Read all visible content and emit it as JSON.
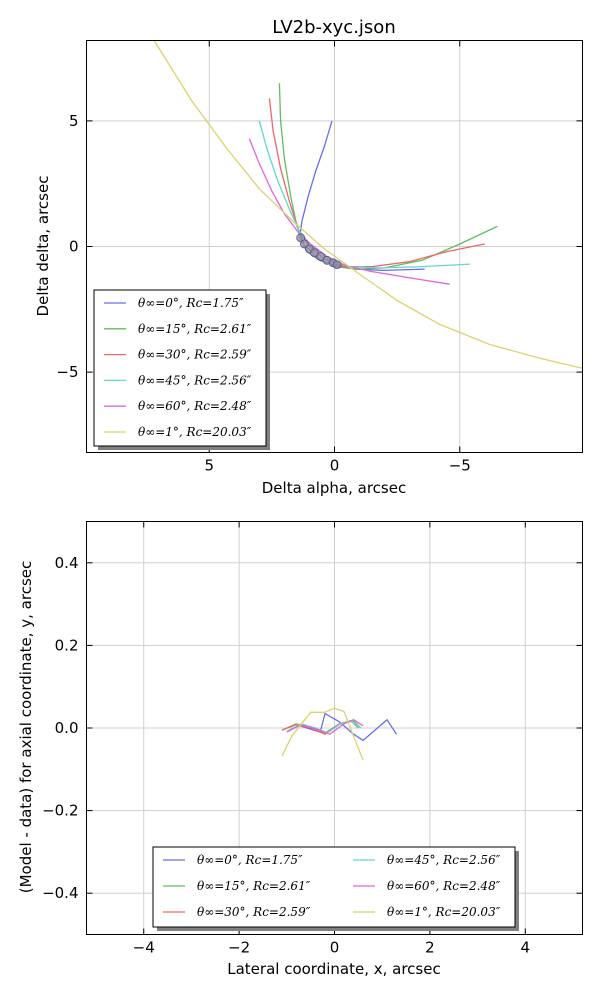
{
  "colors": {
    "series": [
      "#6b6bf2",
      "#5fbf5f",
      "#f06666",
      "#5ed9cc",
      "#e065e0",
      "#dcd26b"
    ],
    "marker": "#8888aa"
  },
  "chart_data": [
    {
      "type": "line",
      "title": "LV2b-xyc.json",
      "xlabel": "Delta alpha, arcsec",
      "ylabel": "Delta delta, arcsec",
      "xlim": [
        9.9,
        -9.9
      ],
      "ylim": [
        -8.2,
        8.2
      ],
      "xticks": [
        5,
        0,
        -5
      ],
      "yticks": [
        -5,
        0,
        5
      ],
      "grid": true,
      "legend_position": "lower-left",
      "series": [
        {
          "name": "θ∞=0°, Rc=1.75″",
          "points": [
            [
              0.1,
              5.0
            ],
            [
              0.4,
              4.0
            ],
            [
              0.75,
              3.0
            ],
            [
              1.05,
              2.0
            ],
            [
              1.3,
              1.0
            ],
            [
              1.38,
              0.4
            ],
            [
              1.1,
              -0.2
            ],
            [
              0.6,
              -0.55
            ],
            [
              0,
              -0.75
            ],
            [
              -0.8,
              -0.9
            ],
            [
              -2.0,
              -0.95
            ],
            [
              -3.6,
              -0.9
            ]
          ]
        },
        {
          "name": "θ∞=15°, Rc=2.61″",
          "points": [
            [
              2.2,
              6.5
            ],
            [
              2.15,
              5.0
            ],
            [
              2.0,
              3.5
            ],
            [
              1.75,
              2.0
            ],
            [
              1.5,
              0.8
            ],
            [
              1.2,
              0.05
            ],
            [
              0.6,
              -0.5
            ],
            [
              0,
              -0.8
            ],
            [
              -0.9,
              -0.9
            ],
            [
              -2.0,
              -0.85
            ],
            [
              -3.5,
              -0.55
            ],
            [
              -5.0,
              0.1
            ],
            [
              -6.5,
              0.8
            ]
          ]
        },
        {
          "name": "θ∞=30°, Rc=2.59″",
          "points": [
            [
              2.6,
              5.9
            ],
            [
              2.45,
              4.6
            ],
            [
              2.15,
              3.1
            ],
            [
              1.8,
              1.8
            ],
            [
              1.45,
              0.7
            ],
            [
              1.0,
              0
            ],
            [
              0.4,
              -0.5
            ],
            [
              -0.4,
              -0.8
            ],
            [
              -1.5,
              -0.8
            ],
            [
              -3.0,
              -0.6
            ],
            [
              -4.5,
              -0.2
            ],
            [
              -6.0,
              0.1
            ]
          ]
        },
        {
          "name": "θ∞=45°, Rc=2.56″",
          "points": [
            [
              3.0,
              5.0
            ],
            [
              2.7,
              3.9
            ],
            [
              2.3,
              2.7
            ],
            [
              1.85,
              1.6
            ],
            [
              1.4,
              0.6
            ],
            [
              0.9,
              0
            ],
            [
              0.2,
              -0.5
            ],
            [
              -0.6,
              -0.8
            ],
            [
              -1.8,
              -0.85
            ],
            [
              -3.5,
              -0.8
            ],
            [
              -5.4,
              -0.7
            ]
          ]
        },
        {
          "name": "θ∞=60°, Rc=2.48″",
          "points": [
            [
              3.4,
              4.3
            ],
            [
              3.0,
              3.3
            ],
            [
              2.5,
              2.2
            ],
            [
              2.0,
              1.3
            ],
            [
              1.4,
              0.5
            ],
            [
              0.9,
              0.05
            ],
            [
              0.3,
              -0.4
            ],
            [
              -0.4,
              -0.75
            ],
            [
              -1.5,
              -1.0
            ],
            [
              -3.0,
              -1.25
            ],
            [
              -4.6,
              -1.5
            ]
          ]
        },
        {
          "name": "θ∞=1°, Rc=20.03″",
          "points": [
            [
              7.2,
              8.2
            ],
            [
              5.7,
              5.8
            ],
            [
              4.3,
              3.9
            ],
            [
              3.0,
              2.3
            ],
            [
              1.6,
              0.95
            ],
            [
              0.4,
              -0.1
            ],
            [
              -1.0,
              -1.1
            ],
            [
              -2.5,
              -2.15
            ],
            [
              -4.2,
              -3.1
            ],
            [
              -6.2,
              -3.9
            ],
            [
              -8.2,
              -4.45
            ],
            [
              -9.9,
              -4.85
            ]
          ]
        }
      ],
      "markers": {
        "points": [
          [
            1.35,
            0.35
          ],
          [
            1.2,
            0.1
          ],
          [
            1.0,
            -0.1
          ],
          [
            0.8,
            -0.25
          ],
          [
            0.55,
            -0.4
          ],
          [
            0.3,
            -0.55
          ],
          [
            0.05,
            -0.65
          ],
          [
            -0.1,
            -0.72
          ]
        ]
      }
    },
    {
      "type": "line",
      "title": "",
      "xlabel": "Lateral coordinate, x, arcsec",
      "ylabel": "(Model - data) for axial coordinate, y, arcsec",
      "xlim": [
        -5.2,
        5.2
      ],
      "ylim": [
        -0.5,
        0.5
      ],
      "xticks": [
        -4,
        -2,
        0,
        2,
        4
      ],
      "yticks": [
        -0.4,
        -0.2,
        0.0,
        0.2,
        0.4
      ],
      "grid": true,
      "legend_position": "lower-center",
      "series": [
        {
          "name": "θ∞=0°, Rc=1.75″",
          "points": [
            [
              -0.8,
              0.008
            ],
            [
              -0.3,
              -0.01
            ],
            [
              -0.2,
              0.035
            ],
            [
              0.1,
              0.015
            ],
            [
              0.4,
              -0.015
            ],
            [
              0.6,
              -0.03
            ],
            [
              0.8,
              -0.01
            ],
            [
              1.1,
              0.02
            ],
            [
              1.3,
              -0.015
            ]
          ]
        },
        {
          "name": "θ∞=15°, Rc=2.61″",
          "points": [
            [
              -1.1,
              -0.005
            ],
            [
              -0.8,
              0.01
            ],
            [
              -0.5,
              0.0
            ],
            [
              -0.2,
              -0.012
            ],
            [
              0.1,
              0.01
            ],
            [
              0.35,
              0.018
            ],
            [
              0.5,
              0.0
            ]
          ]
        },
        {
          "name": "θ∞=30°, Rc=2.59″",
          "points": [
            [
              -1.1,
              -0.005
            ],
            [
              -0.8,
              0.008
            ],
            [
              -0.5,
              0.0
            ],
            [
              -0.2,
              -0.015
            ],
            [
              0.1,
              0.01
            ],
            [
              0.4,
              0.018
            ],
            [
              0.55,
              0.0
            ]
          ]
        },
        {
          "name": "θ∞=45°, Rc=2.56″",
          "points": [
            [
              -1.0,
              -0.008
            ],
            [
              -0.7,
              0.01
            ],
            [
              -0.4,
              0.0
            ],
            [
              -0.15,
              -0.012
            ],
            [
              0.15,
              0.012
            ],
            [
              0.4,
              0.016
            ],
            [
              0.55,
              0.0
            ]
          ]
        },
        {
          "name": "θ∞=60°, Rc=2.48″",
          "points": [
            [
              -1.0,
              -0.01
            ],
            [
              -0.7,
              0.008
            ],
            [
              -0.4,
              -0.002
            ],
            [
              -0.1,
              -0.015
            ],
            [
              0.2,
              0.01
            ],
            [
              0.4,
              0.02
            ],
            [
              0.6,
              0.005
            ]
          ]
        },
        {
          "name": "θ∞=1°, Rc=20.03″",
          "points": [
            [
              -1.1,
              -0.068
            ],
            [
              -0.9,
              -0.02
            ],
            [
              -0.5,
              0.038
            ],
            [
              -0.2,
              0.038
            ],
            [
              0.0,
              0.048
            ],
            [
              0.2,
              0.04
            ],
            [
              0.4,
              -0.02
            ],
            [
              0.6,
              -0.078
            ]
          ]
        }
      ]
    }
  ]
}
